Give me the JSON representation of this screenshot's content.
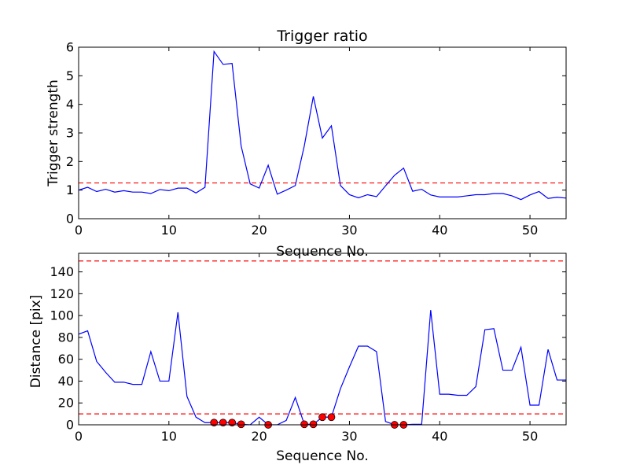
{
  "chart_data": [
    {
      "type": "line",
      "title": "Trigger ratio",
      "xlabel": "Sequence No.",
      "ylabel": "Trigger strength",
      "xlim": [
        0,
        54
      ],
      "ylim": [
        0,
        6
      ],
      "xticks": [
        0,
        10,
        20,
        30,
        40,
        50
      ],
      "yticks": [
        0,
        1,
        2,
        3,
        4,
        5,
        6
      ],
      "grid": false,
      "series": [
        {
          "color": "#0000ff",
          "x": [
            0,
            1,
            2,
            3,
            4,
            5,
            6,
            7,
            8,
            9,
            10,
            11,
            12,
            13,
            14,
            15,
            16,
            17,
            18,
            19,
            20,
            21,
            22,
            23,
            24,
            25,
            26,
            27,
            28,
            29,
            30,
            31,
            32,
            33,
            34,
            35,
            36,
            37,
            38,
            39,
            40,
            41,
            42,
            43,
            44,
            45,
            46,
            47,
            48,
            49,
            50,
            51,
            52,
            53,
            54
          ],
          "y": [
            1.0,
            1.1,
            0.95,
            1.03,
            0.93,
            0.98,
            0.93,
            0.93,
            0.88,
            1.02,
            0.98,
            1.07,
            1.07,
            0.9,
            1.1,
            5.85,
            5.4,
            5.43,
            2.55,
            1.22,
            1.07,
            1.87,
            0.86,
            1.0,
            1.16,
            2.55,
            4.28,
            2.82,
            3.25,
            1.16,
            0.84,
            0.73,
            0.84,
            0.77,
            1.15,
            1.52,
            1.77,
            0.96,
            1.03,
            0.83,
            0.76,
            0.76,
            0.76,
            0.8,
            0.84,
            0.84,
            0.88,
            0.88,
            0.8,
            0.67,
            0.83,
            0.95,
            0.71,
            0.75,
            0.72
          ]
        }
      ],
      "threshold_lines": [
        {
          "y": 1.25,
          "color": "#ff0000",
          "style": "dashed"
        }
      ]
    },
    {
      "type": "line",
      "title": "",
      "xlabel": "Sequence No.",
      "ylabel": "Distance [pix]",
      "xlim": [
        0,
        54
      ],
      "ylim": [
        0,
        157
      ],
      "xticks": [
        0,
        10,
        20,
        30,
        40,
        50
      ],
      "yticks": [
        0,
        20,
        40,
        60,
        80,
        100,
        120,
        140
      ],
      "grid": false,
      "series": [
        {
          "color": "#0000ff",
          "x": [
            0,
            1,
            2,
            3,
            4,
            5,
            6,
            7,
            8,
            9,
            10,
            11,
            12,
            13,
            14,
            15,
            16,
            17,
            18,
            19,
            20,
            21,
            22,
            23,
            24,
            25,
            26,
            27,
            28,
            29,
            30,
            31,
            32,
            33,
            34,
            35,
            36,
            37,
            38,
            39,
            40,
            41,
            42,
            43,
            44,
            45,
            46,
            47,
            48,
            49,
            50,
            51,
            52,
            53,
            54
          ],
          "y": [
            83,
            86,
            58,
            48,
            39,
            39,
            37,
            37,
            67,
            40,
            40,
            103,
            26,
            7,
            2,
            2,
            2,
            2,
            0.5,
            0,
            7,
            0,
            0,
            4,
            25,
            0.5,
            0.5,
            7,
            7,
            33,
            53,
            72,
            72,
            67,
            3,
            0,
            0,
            0.5,
            0.5,
            105,
            28,
            28,
            27,
            27,
            35,
            87,
            88,
            50,
            50,
            71,
            18,
            18,
            69,
            41,
            41
          ]
        },
        {
          "type": "scatter",
          "color": "#ff0000",
          "x": [
            15,
            16,
            17,
            18,
            21,
            25,
            26,
            27,
            28,
            35,
            36
          ],
          "y": [
            2,
            2,
            2,
            0.5,
            0,
            0.5,
            0.5,
            7,
            7,
            0,
            0
          ]
        }
      ],
      "threshold_lines": [
        {
          "y": 150,
          "color": "#ff0000",
          "style": "dashed"
        },
        {
          "y": 10,
          "color": "#ff0000",
          "style": "dashed"
        }
      ]
    }
  ]
}
